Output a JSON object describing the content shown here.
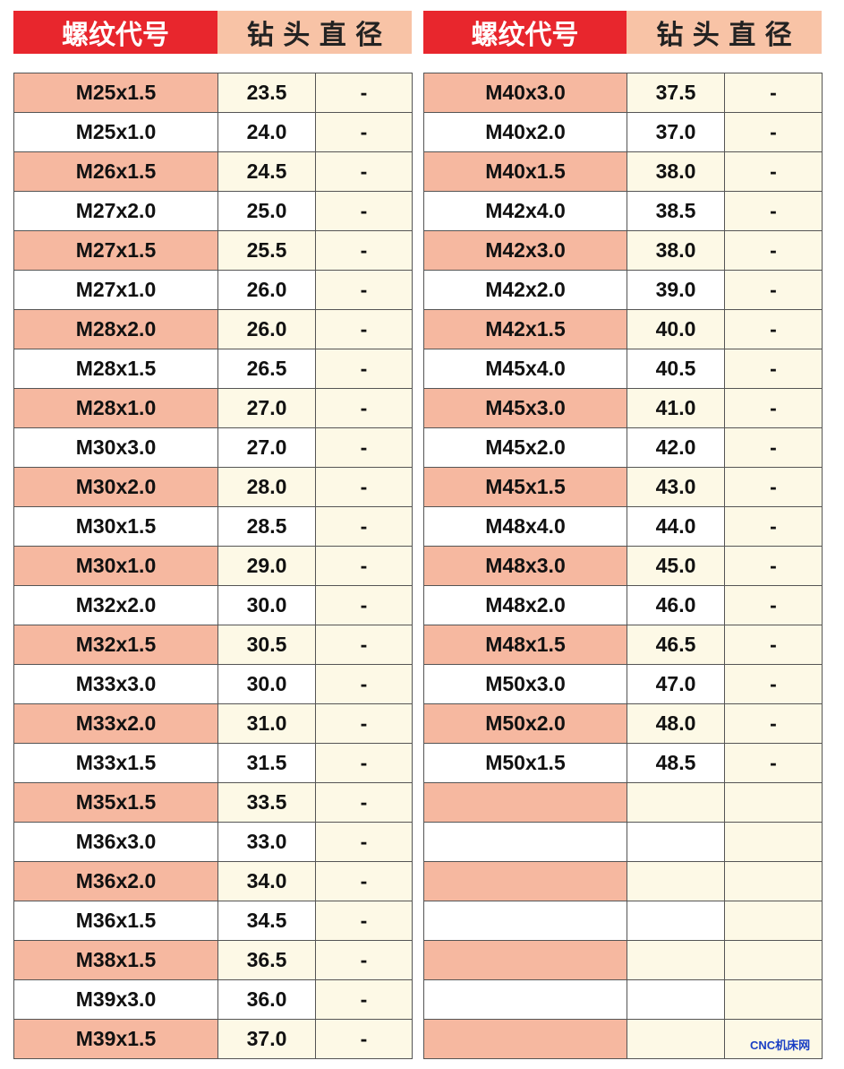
{
  "tables": [
    {
      "header": [
        "螺纹代号",
        "钻 头 直 径"
      ],
      "rows": [
        [
          "M25x1.5",
          "23.5",
          "-"
        ],
        [
          "M25x1.0",
          "24.0",
          "-"
        ],
        [
          "M26x1.5",
          "24.5",
          "-"
        ],
        [
          "M27x2.0",
          "25.0",
          "-"
        ],
        [
          "M27x1.5",
          "25.5",
          "-"
        ],
        [
          "M27x1.0",
          "26.0",
          "-"
        ],
        [
          "M28x2.0",
          "26.0",
          "-"
        ],
        [
          "M28x1.5",
          "26.5",
          "-"
        ],
        [
          "M28x1.0",
          "27.0",
          "-"
        ],
        [
          "M30x3.0",
          "27.0",
          "-"
        ],
        [
          "M30x2.0",
          "28.0",
          "-"
        ],
        [
          "M30x1.5",
          "28.5",
          "-"
        ],
        [
          "M30x1.0",
          "29.0",
          "-"
        ],
        [
          "M32x2.0",
          "30.0",
          "-"
        ],
        [
          "M32x1.5",
          "30.5",
          "-"
        ],
        [
          "M33x3.0",
          "30.0",
          "-"
        ],
        [
          "M33x2.0",
          "31.0",
          "-"
        ],
        [
          "M33x1.5",
          "31.5",
          "-"
        ],
        [
          "M35x1.5",
          "33.5",
          "-"
        ],
        [
          "M36x3.0",
          "33.0",
          "-"
        ],
        [
          "M36x2.0",
          "34.0",
          "-"
        ],
        [
          "M36x1.5",
          "34.5",
          "-"
        ],
        [
          "M38x1.5",
          "36.5",
          "-"
        ],
        [
          "M39x3.0",
          "36.0",
          "-"
        ],
        [
          "M39x1.5",
          "37.0",
          "-"
        ]
      ]
    },
    {
      "header": [
        "螺纹代号",
        "钻 头 直 径"
      ],
      "rows": [
        [
          "M40x3.0",
          "37.5",
          "-"
        ],
        [
          "M40x2.0",
          "37.0",
          "-"
        ],
        [
          "M40x1.5",
          "38.0",
          "-"
        ],
        [
          "M42x4.0",
          "38.5",
          "-"
        ],
        [
          "M42x3.0",
          "38.0",
          "-"
        ],
        [
          "M42x2.0",
          "39.0",
          "-"
        ],
        [
          "M42x1.5",
          "40.0",
          "-"
        ],
        [
          "M45x4.0",
          "40.5",
          "-"
        ],
        [
          "M45x3.0",
          "41.0",
          "-"
        ],
        [
          "M45x2.0",
          "42.0",
          "-"
        ],
        [
          "M45x1.5",
          "43.0",
          "-"
        ],
        [
          "M48x4.0",
          "44.0",
          "-"
        ],
        [
          "M48x3.0",
          "45.0",
          "-"
        ],
        [
          "M48x2.0",
          "46.0",
          "-"
        ],
        [
          "M48x1.5",
          "46.5",
          "-"
        ],
        [
          "M50x3.0",
          "47.0",
          "-"
        ],
        [
          "M50x2.0",
          "48.0",
          "-"
        ],
        [
          "M50x1.5",
          "48.5",
          "-"
        ]
      ]
    }
  ],
  "watermark": "CNC机床网"
}
